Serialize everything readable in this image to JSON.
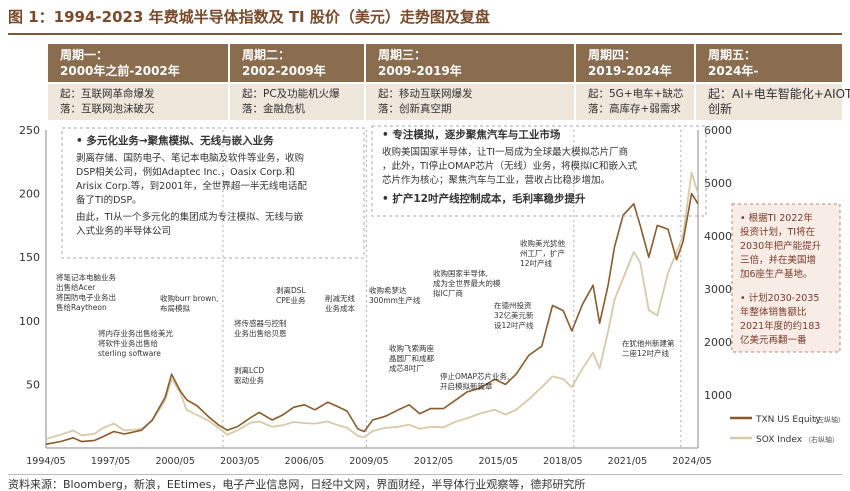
{
  "title": "图 1：1994-2023 年费城半导体指数及 TI 股价（美元）走势图及复盘",
  "periods": [
    {
      "head1": "周期一：",
      "head2": "2000年之前-2002年",
      "rise": "起：互联网革命爆发",
      "fall": "落：互联网泡沫破灭"
    },
    {
      "head1": "周期二：",
      "head2": "2002-2009年",
      "rise": "起：PC及功能机火爆",
      "fall": "落：金融危机"
    },
    {
      "head1": "周期三：",
      "head2": "2009-2019年",
      "rise": "起：移动互联网爆发",
      "fall": "落：创新真空期"
    },
    {
      "head1": "周期四：",
      "head2": "2019-2024年",
      "rise": "起：5G+电车+缺芯",
      "fall": "落：高库存+弱需求"
    },
    {
      "head1": "周期五：",
      "head2": "2024年-",
      "rise": "起：AI+电车智能化+AIOT",
      "fall": "创新"
    }
  ],
  "annotations": {
    "box1_title": "• 多元化业务→聚焦模拟、无线与嵌入业务",
    "box1_lines": [
      "剥离存储、国防电子、笔记本电脑及软件等业务，收购",
      "DSP相关公司，例如Adaptec Inc.，Oasix Corp.和",
      "Arisix Corp.等，到2001年，全世界超一半无线电话配",
      "备了TI的DSP。",
      "由此，TI从一个多元化的集团成为专注模拟、无线与嵌",
      "入式业务的半导体公司"
    ],
    "box2_title": "• 专注模拟，逐步聚焦汽车与工业市场",
    "box2_lines": [
      "收购美国国家半导体，让TI一局成为全球最大模拟芯片厂商",
      "，此外，TI停止OMAP芯片（无线）业务，将模拟IC和嵌入式",
      "芯片作为核心；聚焦汽车与工业，营收占比稳步增加。"
    ],
    "box2_title2": "• 扩产12吋产线控制成本，毛利率稳步提升",
    "side_lines_1": [
      "• 根据TI 2022年",
      "投资计划，TI将在",
      "2030年把产能提升",
      "三倍，并在美国增",
      "加6座生产基地。"
    ],
    "side_lines_2": [
      "• 计划2030-2035",
      "年整体销售额比",
      "2021年度的约183",
      "亿美元再翻一番"
    ],
    "events": {
      "e1": [
        "将笔记本电脑业务",
        "出售给Acer",
        "将国防电子业务出",
        "售给Raytheon"
      ],
      "e2": [
        "将内存业务出售给美光",
        "将软件业务出售给",
        "sterling software"
      ],
      "e3": [
        "收购burr brown,",
        "布局模拟"
      ],
      "e4": [
        "将传感器与控制",
        "业务出售给贝恩"
      ],
      "e5": [
        "剥离LCD",
        "驱动业务"
      ],
      "e6": [
        "剥离DSL",
        "CPE业务"
      ],
      "e7": [
        "削减无线",
        "业务成本"
      ],
      "e8": [
        "收购希梦达",
        "300mm生产线"
      ],
      "e9": [
        "收购飞索两座",
        "晶圆厂和成都",
        "成芯8吋厂"
      ],
      "e10": [
        "收购国家半导体,",
        "成为全世界最大的模",
        "拟IC厂商"
      ],
      "e11": [
        "停止OMAP芯片业务,",
        "开启模拟新篇章"
      ],
      "e12": [
        "在德州投资",
        "32亿美元新",
        "设12吋产线"
      ],
      "e13": [
        "收购美光犹他",
        "州工厂，扩产",
        "12吋产线"
      ],
      "e14": [
        "在犹他州新建第",
        "二座12吋产线"
      ]
    }
  },
  "legend": {
    "txn": "TXN US Equity",
    "txn_axis": "（左纵轴）",
    "sox": "SOX Index",
    "sox_axis": "（右纵轴）"
  },
  "footer": "资料来源：Bloomberg，新浪，EEtimes，电子产业信息网，日经中文网，界面财经，半导体行业观察等，德邦研究所",
  "colors": {
    "txn": "#8b5a2b",
    "sox": "#d9c9a8",
    "head": "#8a6c4e",
    "sub": "#efe6dc"
  },
  "chart_data": {
    "type": "line",
    "title": "1994-2023 年费城半导体指数及 TI 股价（美元）走势图及复盘",
    "x_tick_labels": [
      "1994/05",
      "1997/05",
      "2000/05",
      "2003/05",
      "2006/05",
      "2009/05",
      "2012/05",
      "2015/05",
      "2018/05",
      "2021/05",
      "2024/05"
    ],
    "xlim": [
      1994.33,
      2024.8
    ],
    "y_left": {
      "ticks": [
        0,
        50,
        100,
        150,
        200,
        250
      ],
      "ylim": [
        0,
        250
      ]
    },
    "y_right": {
      "ticks": [
        1000,
        2000,
        3000,
        4000,
        5000,
        6000
      ],
      "ylim": [
        0,
        6000
      ]
    },
    "cycle_boundaries": [
      2002.6,
      2009.3,
      2019.0,
      2024.0
    ],
    "series": [
      {
        "name": "TXN US Equity",
        "axis": "left",
        "color": "#8b5a2b",
        "points": [
          [
            1994.33,
            3
          ],
          [
            1995.0,
            5
          ],
          [
            1995.6,
            8
          ],
          [
            1996.0,
            5
          ],
          [
            1996.6,
            6
          ],
          [
            1997.0,
            9
          ],
          [
            1997.5,
            13
          ],
          [
            1998.0,
            11
          ],
          [
            1998.8,
            14
          ],
          [
            1999.3,
            22
          ],
          [
            1999.9,
            40
          ],
          [
            2000.2,
            58
          ],
          [
            2000.6,
            45
          ],
          [
            2000.9,
            38
          ],
          [
            2001.4,
            33
          ],
          [
            2001.9,
            25
          ],
          [
            2002.4,
            18
          ],
          [
            2002.8,
            14
          ],
          [
            2003.3,
            17
          ],
          [
            2003.9,
            24
          ],
          [
            2004.3,
            28
          ],
          [
            2004.9,
            22
          ],
          [
            2005.4,
            26
          ],
          [
            2005.9,
            32
          ],
          [
            2006.4,
            34
          ],
          [
            2006.9,
            30
          ],
          [
            2007.5,
            36
          ],
          [
            2007.9,
            33
          ],
          [
            2008.4,
            29
          ],
          [
            2008.9,
            15
          ],
          [
            2009.2,
            13
          ],
          [
            2009.6,
            22
          ],
          [
            2010.2,
            25
          ],
          [
            2010.8,
            30
          ],
          [
            2011.3,
            34
          ],
          [
            2011.8,
            27
          ],
          [
            2012.3,
            31
          ],
          [
            2012.9,
            31
          ],
          [
            2013.5,
            38
          ],
          [
            2014.0,
            44
          ],
          [
            2014.6,
            47
          ],
          [
            2015.3,
            54
          ],
          [
            2015.8,
            50
          ],
          [
            2016.3,
            58
          ],
          [
            2016.9,
            73
          ],
          [
            2017.5,
            80
          ],
          [
            2018.0,
            112
          ],
          [
            2018.5,
            108
          ],
          [
            2018.9,
            92
          ],
          [
            2019.4,
            113
          ],
          [
            2019.9,
            128
          ],
          [
            2020.2,
            98
          ],
          [
            2020.6,
            128
          ],
          [
            2020.9,
            158
          ],
          [
            2021.3,
            183
          ],
          [
            2021.8,
            192
          ],
          [
            2022.1,
            175
          ],
          [
            2022.5,
            150
          ],
          [
            2022.9,
            175
          ],
          [
            2023.4,
            172
          ],
          [
            2023.8,
            148
          ],
          [
            2024.1,
            162
          ],
          [
            2024.5,
            200
          ],
          [
            2024.8,
            192
          ]
        ]
      },
      {
        "name": "SOX Index",
        "axis": "right",
        "color": "#d9c9a8",
        "points": [
          [
            1994.33,
            170
          ],
          [
            1995.0,
            250
          ],
          [
            1995.6,
            330
          ],
          [
            1996.0,
            240
          ],
          [
            1996.6,
            270
          ],
          [
            1997.0,
            380
          ],
          [
            1997.5,
            460
          ],
          [
            1998.0,
            330
          ],
          [
            1998.8,
            360
          ],
          [
            1999.3,
            520
          ],
          [
            1999.9,
            900
          ],
          [
            2000.2,
            1300
          ],
          [
            2000.6,
            1050
          ],
          [
            2000.9,
            720
          ],
          [
            2001.4,
            620
          ],
          [
            2001.9,
            520
          ],
          [
            2002.4,
            380
          ],
          [
            2002.8,
            250
          ],
          [
            2003.3,
            340
          ],
          [
            2003.9,
            480
          ],
          [
            2004.3,
            500
          ],
          [
            2004.9,
            400
          ],
          [
            2005.4,
            430
          ],
          [
            2005.9,
            490
          ],
          [
            2006.4,
            470
          ],
          [
            2006.9,
            460
          ],
          [
            2007.5,
            500
          ],
          [
            2007.9,
            440
          ],
          [
            2008.4,
            380
          ],
          [
            2008.9,
            230
          ],
          [
            2009.2,
            200
          ],
          [
            2009.6,
            320
          ],
          [
            2010.2,
            380
          ],
          [
            2010.8,
            400
          ],
          [
            2011.3,
            440
          ],
          [
            2011.8,
            360
          ],
          [
            2012.3,
            400
          ],
          [
            2012.9,
            390
          ],
          [
            2013.5,
            500
          ],
          [
            2014.0,
            560
          ],
          [
            2014.6,
            650
          ],
          [
            2015.3,
            720
          ],
          [
            2015.8,
            630
          ],
          [
            2016.3,
            720
          ],
          [
            2016.9,
            920
          ],
          [
            2017.5,
            1150
          ],
          [
            2018.0,
            1350
          ],
          [
            2018.5,
            1300
          ],
          [
            2018.9,
            1150
          ],
          [
            2019.4,
            1500
          ],
          [
            2019.9,
            1800
          ],
          [
            2020.2,
            1500
          ],
          [
            2020.6,
            2200
          ],
          [
            2020.9,
            2800
          ],
          [
            2021.3,
            3200
          ],
          [
            2021.8,
            3700
          ],
          [
            2022.1,
            3500
          ],
          [
            2022.5,
            2600
          ],
          [
            2022.9,
            2500
          ],
          [
            2023.4,
            3300
          ],
          [
            2023.8,
            3700
          ],
          [
            2024.1,
            4000
          ],
          [
            2024.5,
            5200
          ],
          [
            2024.8,
            4800
          ]
        ]
      }
    ]
  }
}
